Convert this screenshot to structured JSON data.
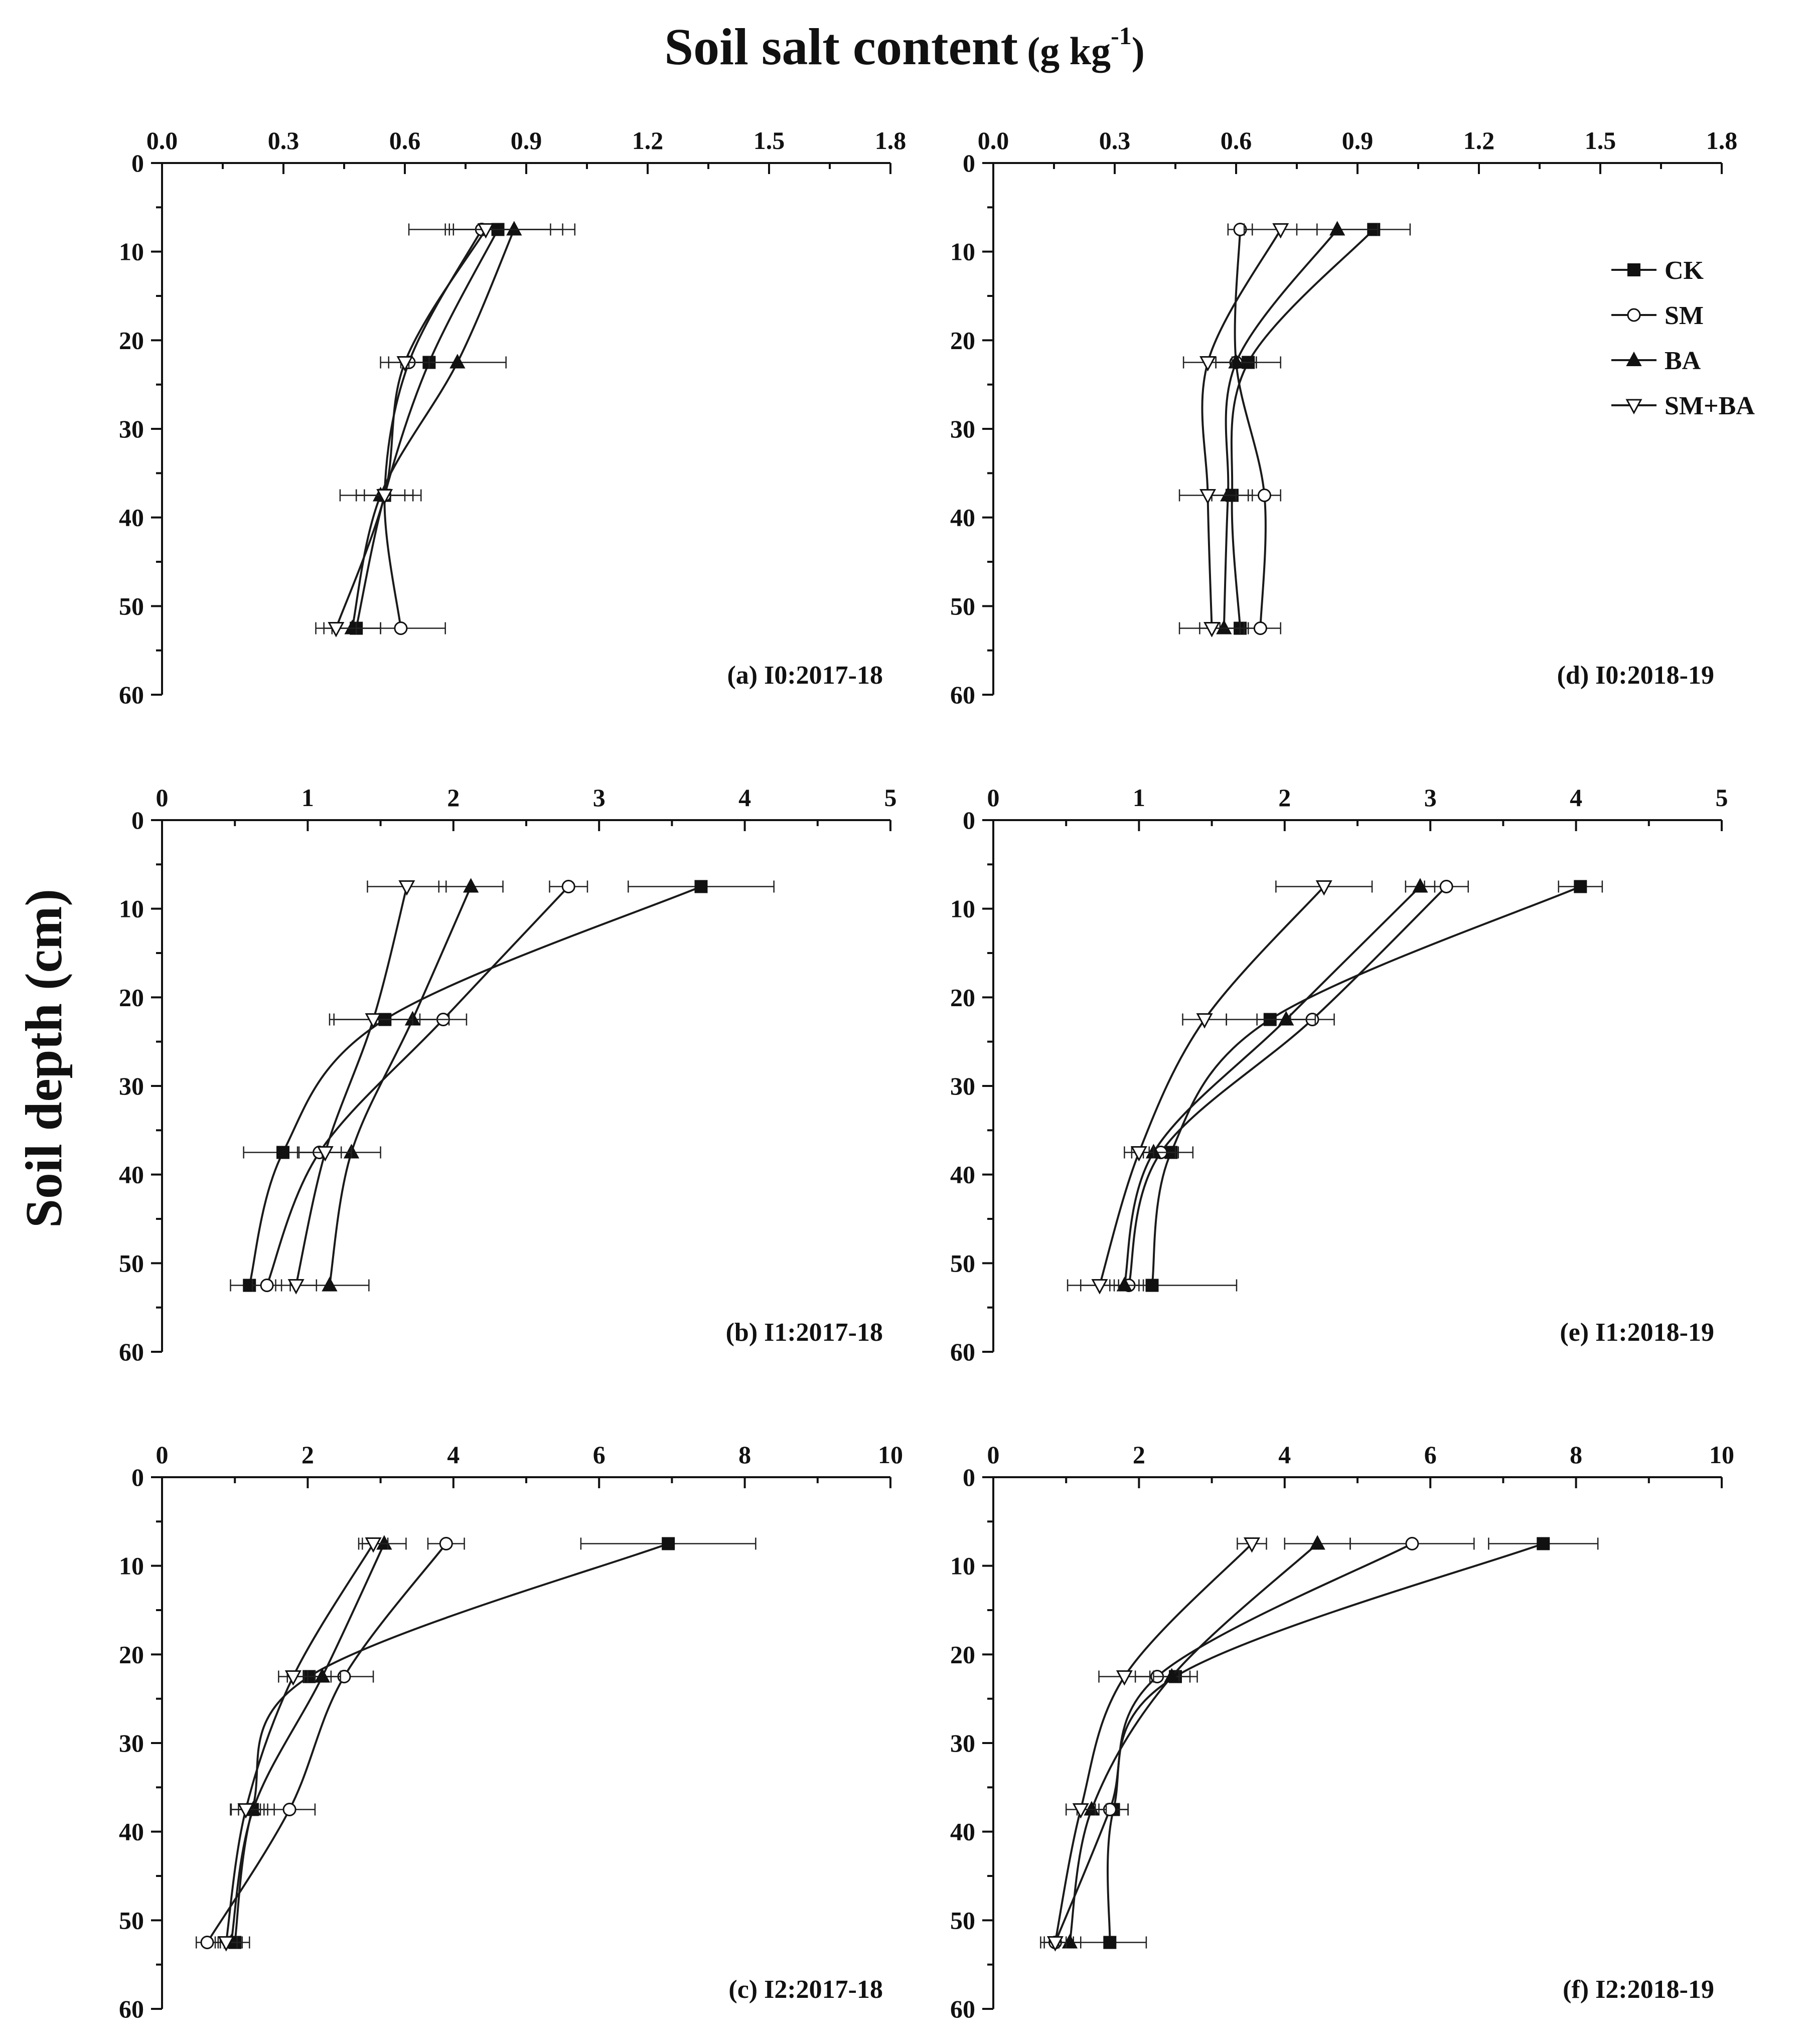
{
  "figure": {
    "x_title_main": "Soil salt content",
    "x_title_unit": "(g kg",
    "x_title_sup": "-1",
    "x_title_close": ")",
    "y_title": "Soil depth (cm)"
  },
  "legend": {
    "items": [
      {
        "name": "CK",
        "marker": "filled-square"
      },
      {
        "name": "SM",
        "marker": "open-circle"
      },
      {
        "name": "BA",
        "marker": "filled-triangle"
      },
      {
        "name": "SM+BA",
        "marker": "open-triangle-down"
      }
    ]
  },
  "chart_data": [
    {
      "type": "line",
      "panel": "a",
      "title": "(a) I0:2017-18",
      "xlabel": "Soil salt content (g kg-1)",
      "ylabel": "Soil depth (cm)",
      "xlim": [
        0,
        1.8
      ],
      "ylim": [
        60,
        0
      ],
      "xticks": [
        0,
        0.3,
        0.6,
        0.9,
        1.2,
        1.5,
        1.8
      ],
      "xtick_labels": [
        "0.0",
        "0.3",
        "0.6",
        "0.9",
        "1.2",
        "1.5",
        "1.8"
      ],
      "yticks": [
        0,
        10,
        20,
        30,
        40,
        50,
        60
      ],
      "ytick_labels": [
        "0",
        "10",
        "20",
        "30",
        "40",
        "50",
        "60"
      ],
      "depths": [
        7.5,
        22.5,
        37.5,
        52.5
      ],
      "series": [
        {
          "name": "CK",
          "values": [
            0.83,
            0.66,
            0.55,
            0.48
          ],
          "errors": [
            0.13,
            0.07,
            0.07,
            0.06
          ]
        },
        {
          "name": "SM",
          "values": [
            0.79,
            0.61,
            0.55,
            0.59
          ],
          "errors": [
            0.08,
            0.05,
            0.05,
            0.11
          ]
        },
        {
          "name": "BA",
          "values": [
            0.87,
            0.73,
            0.54,
            0.47
          ],
          "errors": [
            0.15,
            0.12,
            0.1,
            0.07
          ]
        },
        {
          "name": "SM+BA",
          "values": [
            0.8,
            0.6,
            0.55,
            0.43
          ],
          "errors": [
            0.19,
            0.06,
            0.07,
            0.05
          ]
        }
      ]
    },
    {
      "type": "line",
      "panel": "b",
      "title": "(b) I1:2017-18",
      "xlabel": "Soil salt content (g kg-1)",
      "ylabel": "Soil depth (cm)",
      "xlim": [
        0,
        5
      ],
      "ylim": [
        60,
        0
      ],
      "xticks": [
        0,
        1,
        2,
        3,
        4,
        5
      ],
      "xtick_labels": [
        "0",
        "1",
        "2",
        "3",
        "4",
        "5"
      ],
      "yticks": [
        0,
        10,
        20,
        30,
        40,
        50,
        60
      ],
      "ytick_labels": [
        "0",
        "10",
        "20",
        "30",
        "40",
        "50",
        "60"
      ],
      "depths": [
        7.5,
        22.5,
        37.5,
        52.5
      ],
      "series": [
        {
          "name": "CK",
          "values": [
            3.7,
            1.53,
            0.83,
            0.6
          ],
          "errors": [
            0.5,
            0.38,
            0.27,
            0.13
          ]
        },
        {
          "name": "SM",
          "values": [
            2.79,
            1.93,
            1.08,
            0.72
          ],
          "errors": [
            0.13,
            0.16,
            0.15,
            0.1
          ]
        },
        {
          "name": "BA",
          "values": [
            2.12,
            1.72,
            1.3,
            1.15
          ],
          "errors": [
            0.22,
            0.25,
            0.2,
            0.27
          ]
        },
        {
          "name": "SM+BA",
          "values": [
            1.68,
            1.45,
            1.12,
            0.92
          ],
          "errors": [
            0.27,
            0.27,
            0.18,
            0.14
          ]
        }
      ]
    },
    {
      "type": "line",
      "panel": "c",
      "title": "(c) I2:2017-18",
      "xlabel": "Soil salt content (g kg-1)",
      "ylabel": "Soil depth (cm)",
      "xlim": [
        0,
        10
      ],
      "ylim": [
        60,
        0
      ],
      "xticks": [
        0,
        2,
        4,
        6,
        8,
        10
      ],
      "xtick_labels": [
        "0",
        "2",
        "4",
        "6",
        "8",
        "10"
      ],
      "yticks": [
        0,
        10,
        20,
        30,
        40,
        50,
        60
      ],
      "ytick_labels": [
        "0",
        "10",
        "20",
        "30",
        "40",
        "50",
        "60"
      ],
      "depths": [
        7.5,
        22.5,
        37.5,
        52.5
      ],
      "series": [
        {
          "name": "CK",
          "values": [
            6.95,
            2.02,
            1.24,
            1.0
          ],
          "errors": [
            1.2,
            0.3,
            0.3,
            0.2
          ]
        },
        {
          "name": "SM",
          "values": [
            3.9,
            2.5,
            1.75,
            0.62
          ],
          "errors": [
            0.25,
            0.4,
            0.35,
            0.15
          ]
        },
        {
          "name": "BA",
          "values": [
            3.05,
            2.2,
            1.25,
            0.95
          ],
          "errors": [
            0.3,
            0.25,
            0.2,
            0.15
          ]
        },
        {
          "name": "SM+BA",
          "values": [
            2.9,
            1.8,
            1.15,
            0.88
          ],
          "errors": [
            0.2,
            0.2,
            0.2,
            0.15
          ]
        }
      ]
    },
    {
      "type": "line",
      "panel": "d",
      "title": "(d) I0:2018-19",
      "xlabel": "Soil salt content (g kg-1)",
      "ylabel": "Soil depth (cm)",
      "xlim": [
        0,
        1.8
      ],
      "ylim": [
        60,
        0
      ],
      "xticks": [
        0,
        0.3,
        0.6,
        0.9,
        1.2,
        1.5,
        1.8
      ],
      "xtick_labels": [
        "0.0",
        "0.3",
        "0.6",
        "0.9",
        "1.2",
        "1.5",
        "1.8"
      ],
      "yticks": [
        0,
        10,
        20,
        30,
        40,
        50,
        60
      ],
      "ytick_labels": [
        "0",
        "10",
        "20",
        "30",
        "40",
        "50",
        "60"
      ],
      "depths": [
        7.5,
        22.5,
        37.5,
        52.5
      ],
      "series": [
        {
          "name": "CK",
          "values": [
            0.94,
            0.63,
            0.59,
            0.61
          ],
          "errors": [
            0.09,
            0.08,
            0.05,
            0.05
          ]
        },
        {
          "name": "SM",
          "values": [
            0.61,
            0.6,
            0.67,
            0.66
          ],
          "errors": [
            0.03,
            0.05,
            0.04,
            0.05
          ]
        },
        {
          "name": "BA",
          "values": [
            0.85,
            0.6,
            0.58,
            0.57
          ],
          "errors": [
            0.1,
            0.05,
            0.05,
            0.06
          ]
        },
        {
          "name": "SM+BA",
          "values": [
            0.71,
            0.53,
            0.53,
            0.54
          ],
          "errors": [
            0.09,
            0.06,
            0.07,
            0.08
          ]
        }
      ]
    },
    {
      "type": "line",
      "panel": "e",
      "title": "(e) I1:2018-19",
      "xlabel": "Soil salt content (g kg-1)",
      "ylabel": "Soil depth (cm)",
      "xlim": [
        0,
        5
      ],
      "ylim": [
        60,
        0
      ],
      "xticks": [
        0,
        1,
        2,
        3,
        4,
        5
      ],
      "xtick_labels": [
        "0",
        "1",
        "2",
        "3",
        "4",
        "5"
      ],
      "yticks": [
        0,
        10,
        20,
        30,
        40,
        50,
        60
      ],
      "ytick_labels": [
        "0",
        "10",
        "20",
        "30",
        "40",
        "50",
        "60"
      ],
      "depths": [
        7.5,
        22.5,
        37.5,
        52.5
      ],
      "series": [
        {
          "name": "CK",
          "values": [
            4.03,
            1.9,
            1.22,
            1.09
          ],
          "errors": [
            0.15,
            0.3,
            0.15,
            0.58
          ]
        },
        {
          "name": "SM",
          "values": [
            3.11,
            2.19,
            1.15,
            0.93
          ],
          "errors": [
            0.15,
            0.15,
            0.12,
            0.1
          ]
        },
        {
          "name": "BA",
          "values": [
            2.93,
            2.01,
            1.1,
            0.9
          ],
          "errors": [
            0.1,
            0.2,
            0.15,
            0.1
          ]
        },
        {
          "name": "SM+BA",
          "values": [
            2.27,
            1.45,
            1.0,
            0.73
          ],
          "errors": [
            0.33,
            0.15,
            0.1,
            0.13
          ]
        }
      ]
    },
    {
      "type": "line",
      "panel": "f",
      "title": "(f) I2:2018-19",
      "xlabel": "Soil salt content (g kg-1)",
      "ylabel": "Soil depth (cm)",
      "xlim": [
        0,
        10
      ],
      "ylim": [
        60,
        0
      ],
      "xticks": [
        0,
        2,
        4,
        6,
        8,
        10
      ],
      "xtick_labels": [
        "0",
        "2",
        "4",
        "6",
        "8",
        "10"
      ],
      "yticks": [
        0,
        10,
        20,
        30,
        40,
        50,
        60
      ],
      "ytick_labels": [
        "0",
        "10",
        "20",
        "30",
        "40",
        "50",
        "60"
      ],
      "depths": [
        7.5,
        22.5,
        37.5,
        52.5
      ],
      "series": [
        {
          "name": "CK",
          "values": [
            7.55,
            2.5,
            1.65,
            1.6
          ],
          "errors": [
            0.75,
            0.3,
            0.2,
            0.5
          ]
        },
        {
          "name": "SM",
          "values": [
            5.75,
            2.25,
            1.6,
            0.85
          ],
          "errors": [
            0.85,
            0.3,
            0.25,
            0.2
          ]
        },
        {
          "name": "BA",
          "values": [
            4.45,
            2.45,
            1.35,
            1.05
          ],
          "errors": [
            0.45,
            0.25,
            0.2,
            0.15
          ]
        },
        {
          "name": "SM+BA",
          "values": [
            3.55,
            1.8,
            1.2,
            0.85
          ],
          "errors": [
            0.2,
            0.35,
            0.2,
            0.15
          ]
        }
      ]
    }
  ]
}
